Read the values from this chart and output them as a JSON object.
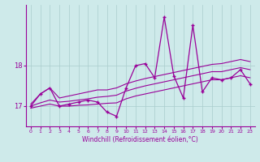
{
  "xlabel": "Windchill (Refroidissement éolien,°C)",
  "background_color": "#ceeaea",
  "line_color": "#990099",
  "grid_color": "#aacccc",
  "x_values": [
    0,
    1,
    2,
    3,
    4,
    5,
    6,
    7,
    8,
    9,
    10,
    11,
    12,
    13,
    14,
    15,
    16,
    17,
    18,
    19,
    20,
    21,
    22,
    23
  ],
  "y_main": [
    17.0,
    17.3,
    17.45,
    17.0,
    17.05,
    17.1,
    17.15,
    17.1,
    16.85,
    16.75,
    17.45,
    18.0,
    18.05,
    17.7,
    19.2,
    17.75,
    17.2,
    19.0,
    17.35,
    17.7,
    17.65,
    17.7,
    17.9,
    17.55
  ],
  "y_upper": [
    17.05,
    17.3,
    17.45,
    17.2,
    17.25,
    17.3,
    17.35,
    17.4,
    17.4,
    17.45,
    17.55,
    17.62,
    17.68,
    17.73,
    17.78,
    17.83,
    17.88,
    17.93,
    17.98,
    18.03,
    18.05,
    18.1,
    18.15,
    18.1
  ],
  "y_mid": [
    17.0,
    17.08,
    17.15,
    17.1,
    17.12,
    17.15,
    17.18,
    17.22,
    17.24,
    17.27,
    17.37,
    17.44,
    17.5,
    17.55,
    17.6,
    17.65,
    17.7,
    17.75,
    17.8,
    17.85,
    17.85,
    17.9,
    17.95,
    17.9
  ],
  "y_lower": [
    16.95,
    17.0,
    17.05,
    17.0,
    17.0,
    17.02,
    17.03,
    17.05,
    17.07,
    17.08,
    17.18,
    17.25,
    17.3,
    17.35,
    17.4,
    17.45,
    17.5,
    17.55,
    17.6,
    17.65,
    17.65,
    17.7,
    17.75,
    17.7
  ],
  "ylim": [
    16.5,
    19.5
  ],
  "yticks": [
    17,
    18
  ],
  "xlim": [
    -0.5,
    23.5
  ]
}
